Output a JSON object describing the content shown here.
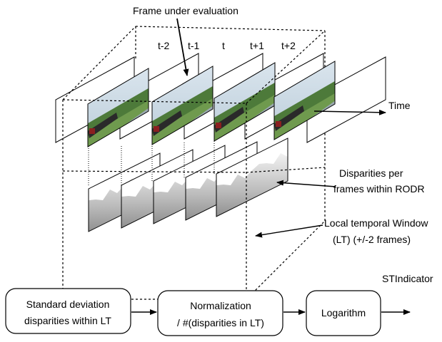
{
  "labels": {
    "frame_under_evaluation": "Frame under evaluation",
    "time_label": "Time",
    "disparities_line1": "Disparities per",
    "disparities_line2": "frames within RODR",
    "window_line1": "Local temporal Window",
    "window_line2": "(LT)  (+/-2 frames)",
    "stindicator": "STIndicator"
  },
  "frames": [
    {
      "label": "t-2"
    },
    {
      "label": "t-1"
    },
    {
      "label": "t"
    },
    {
      "label": "t+1"
    },
    {
      "label": "t+2"
    }
  ],
  "pipeline": {
    "steps": [
      {
        "line1": "Standard deviation",
        "line2": "disparities within LT"
      },
      {
        "line1": "Normalization",
        "line2": "/ #(disparities in LT)"
      },
      {
        "line1": "Logarithm",
        "line2": ""
      }
    ]
  },
  "colors": {
    "sky": "#c9dbe8",
    "trees": "#4d7a3a",
    "grass": "#6f9a4e",
    "water": "#9aa8b0",
    "train": "#2a2a2a",
    "disparity_dark": "#8a8a8a",
    "disparity_light": "#f2f2f2"
  }
}
